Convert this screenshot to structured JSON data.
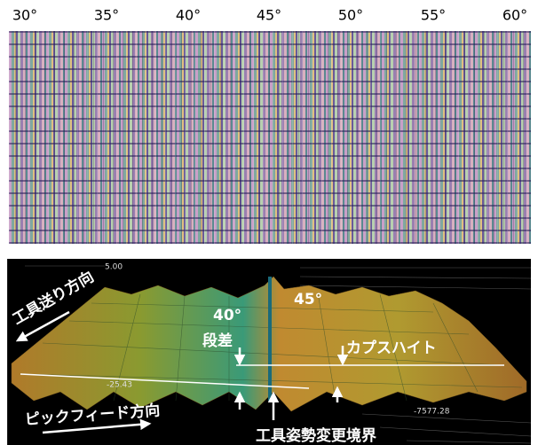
{
  "top_scale": {
    "labels": [
      "30°",
      "35°",
      "40°",
      "45°",
      "50°",
      "55°",
      "60°"
    ]
  },
  "surface_plot": {
    "axis_labels": [
      "5.00",
      "-25.43",
      "-7577.28"
    ],
    "annotations": {
      "feed_direction": "工具送り方向",
      "angle_left": "40°",
      "angle_right": "45°",
      "step": "段差",
      "cusp_height": "カプスハイト",
      "pick_feed_direction": "ピックフィード方向",
      "boundary": "工具姿勢変更境界"
    }
  }
}
